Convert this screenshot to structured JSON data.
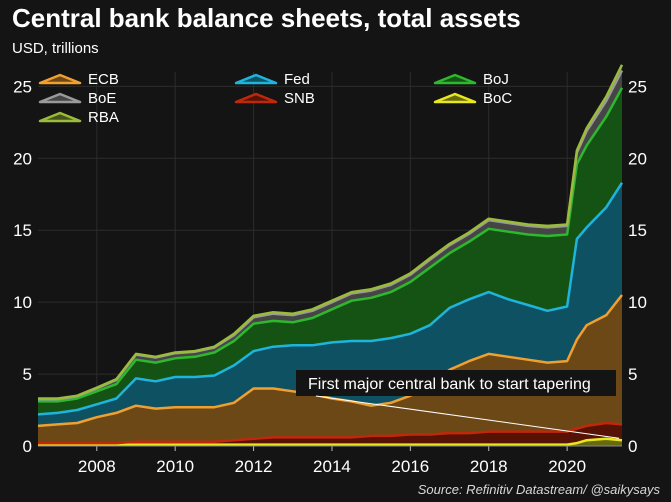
{
  "chart_data": {
    "type": "area",
    "stacked": true,
    "title": "Central bank balance sheets, total assets",
    "subtitle": "USD, trillions",
    "source": "Source: Refinitiv Datastream/ @saikysays",
    "ylim": [
      0,
      26
    ],
    "yticks": [
      0,
      5,
      10,
      15,
      20,
      25
    ],
    "xticks": [
      "2008",
      "2010",
      "2012",
      "2014",
      "2016",
      "2018",
      "2020"
    ],
    "xlim": [
      2006.5,
      2021.4
    ],
    "grid": true,
    "legend_position": "top",
    "x": [
      2006.5,
      2007.0,
      2007.5,
      2008.0,
      2008.5,
      2009.0,
      2009.5,
      2010.0,
      2010.5,
      2011.0,
      2011.5,
      2012.0,
      2012.5,
      2013.0,
      2013.5,
      2014.0,
      2014.5,
      2015.0,
      2015.5,
      2016.0,
      2016.5,
      2017.0,
      2017.5,
      2018.0,
      2018.5,
      2019.0,
      2019.5,
      2020.0,
      2020.25,
      2020.5,
      2021.0,
      2021.4
    ],
    "series": [
      {
        "name": "BoC",
        "color": "#e8e81e",
        "values": [
          0.1,
          0.1,
          0.1,
          0.1,
          0.1,
          0.1,
          0.1,
          0.1,
          0.1,
          0.1,
          0.1,
          0.1,
          0.1,
          0.1,
          0.1,
          0.1,
          0.1,
          0.1,
          0.1,
          0.1,
          0.1,
          0.1,
          0.1,
          0.1,
          0.1,
          0.1,
          0.1,
          0.1,
          0.2,
          0.4,
          0.5,
          0.4
        ]
      },
      {
        "name": "SNB",
        "color": "#c0280c",
        "values": [
          0.1,
          0.1,
          0.1,
          0.1,
          0.1,
          0.2,
          0.2,
          0.2,
          0.2,
          0.2,
          0.3,
          0.4,
          0.5,
          0.5,
          0.5,
          0.5,
          0.5,
          0.6,
          0.6,
          0.7,
          0.7,
          0.8,
          0.8,
          0.9,
          0.9,
          0.9,
          0.9,
          0.9,
          1.0,
          1.0,
          1.1,
          1.1
        ]
      },
      {
        "name": "ECB",
        "color": "#f0a030",
        "values": [
          1.2,
          1.3,
          1.4,
          1.8,
          2.1,
          2.5,
          2.3,
          2.4,
          2.4,
          2.4,
          2.6,
          3.5,
          3.4,
          3.2,
          3.0,
          2.7,
          2.5,
          2.1,
          2.3,
          2.7,
          3.3,
          4.4,
          5.0,
          5.4,
          5.2,
          5.0,
          4.8,
          4.9,
          6.2,
          7.0,
          7.5,
          9.0
        ]
      },
      {
        "name": "Fed",
        "color": "#1eb4dc",
        "values": [
          0.8,
          0.8,
          0.9,
          0.9,
          1.0,
          1.9,
          1.9,
          2.1,
          2.1,
          2.2,
          2.6,
          2.6,
          2.9,
          3.2,
          3.4,
          3.9,
          4.2,
          4.5,
          4.5,
          4.3,
          4.3,
          4.3,
          4.3,
          4.3,
          4.0,
          3.8,
          3.6,
          3.8,
          7.0,
          6.8,
          7.5,
          7.8
        ]
      },
      {
        "name": "BoJ",
        "color": "#2eb82e",
        "values": [
          0.9,
          0.8,
          0.8,
          0.9,
          1.0,
          1.3,
          1.3,
          1.3,
          1.4,
          1.6,
          1.7,
          1.9,
          1.8,
          1.6,
          1.9,
          2.3,
          2.8,
          3.0,
          3.2,
          3.6,
          4.0,
          3.8,
          4.0,
          4.4,
          4.7,
          4.9,
          5.2,
          5.0,
          5.2,
          5.7,
          6.3,
          6.6
        ]
      },
      {
        "name": "BoE",
        "color": "#9a9a9a",
        "values": [
          0.15,
          0.15,
          0.15,
          0.2,
          0.3,
          0.35,
          0.35,
          0.35,
          0.35,
          0.35,
          0.4,
          0.45,
          0.5,
          0.5,
          0.5,
          0.5,
          0.5,
          0.5,
          0.5,
          0.5,
          0.55,
          0.55,
          0.55,
          0.6,
          0.6,
          0.6,
          0.6,
          0.6,
          0.8,
          1.0,
          1.1,
          1.2
        ]
      },
      {
        "name": "RBA",
        "color": "#9bbb3a",
        "values": [
          0.05,
          0.05,
          0.05,
          0.05,
          0.05,
          0.05,
          0.05,
          0.05,
          0.05,
          0.05,
          0.1,
          0.1,
          0.1,
          0.1,
          0.1,
          0.1,
          0.1,
          0.1,
          0.1,
          0.1,
          0.1,
          0.1,
          0.1,
          0.1,
          0.1,
          0.1,
          0.1,
          0.1,
          0.15,
          0.2,
          0.3,
          0.4
        ]
      }
    ],
    "stack_order": [
      "BoC",
      "SNB",
      "ECB",
      "Fed",
      "BoJ",
      "BoE",
      "RBA"
    ],
    "legend_order": [
      "ECB",
      "Fed",
      "BoJ",
      "BoE",
      "SNB",
      "BoC",
      "RBA"
    ],
    "annotations": [
      {
        "text": "First major central bank to start tapering",
        "target_series": "BoC",
        "target_x": 2021.4
      }
    ]
  }
}
